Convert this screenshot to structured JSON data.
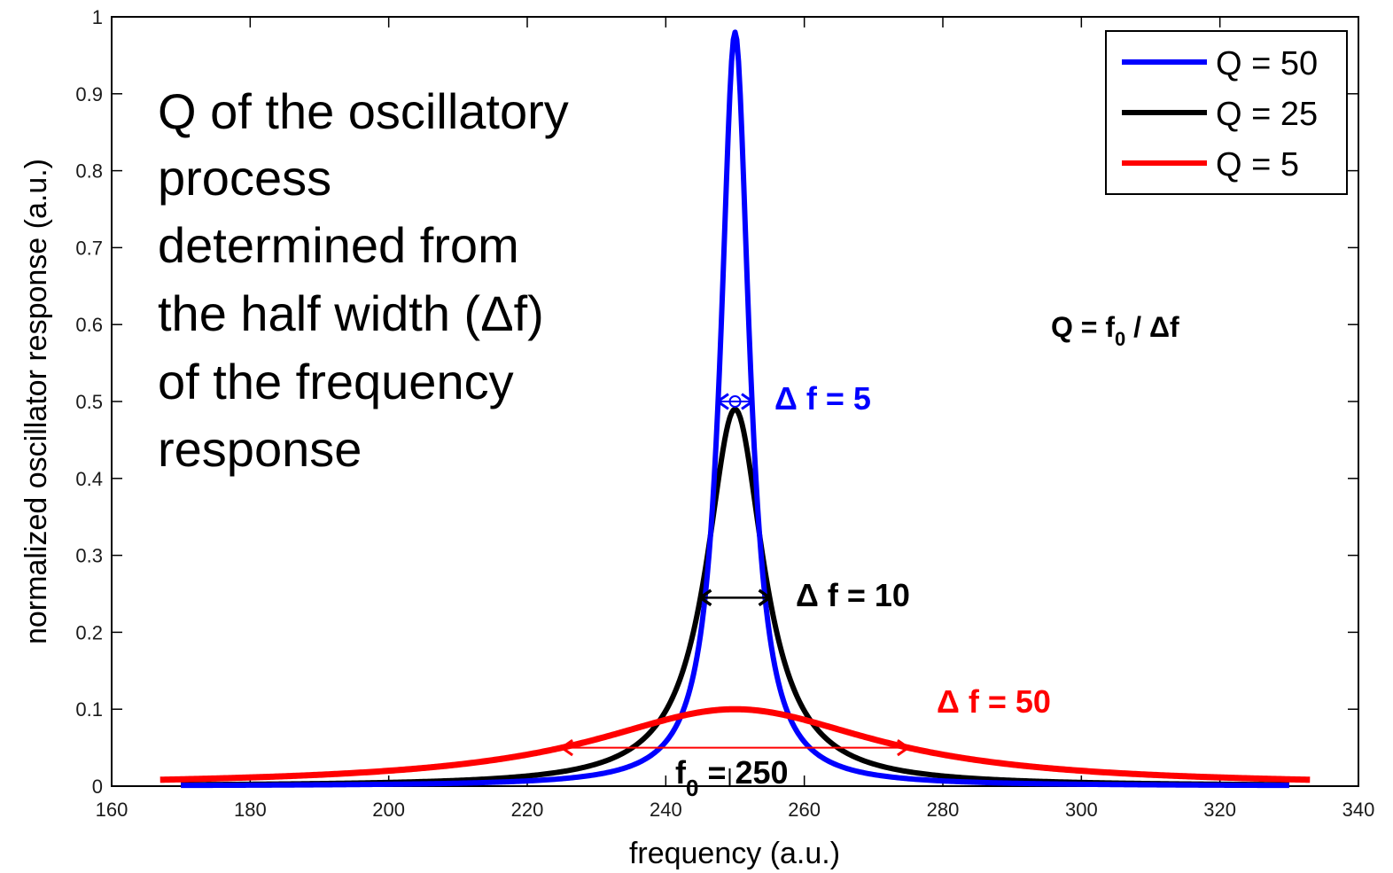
{
  "chart_data": {
    "type": "line",
    "xlabel": "frequency (a.u.)",
    "ylabel": "normalized oscillator response (a.u.)",
    "xlim": [
      160,
      340
    ],
    "ylim": [
      0,
      1
    ],
    "xticks": [
      160,
      180,
      200,
      220,
      240,
      260,
      280,
      300,
      320,
      340
    ],
    "yticks": [
      0,
      0.1,
      0.2,
      0.3,
      0.4,
      0.5,
      0.6,
      0.7,
      0.8,
      0.9,
      1
    ],
    "ytick_labels": [
      "0",
      "0.1",
      "0.2",
      "0.3",
      "0.4",
      "0.5",
      "0.6",
      "0.7",
      "0.8",
      "0.9",
      "1"
    ],
    "grid": false,
    "legend_position": "top-right",
    "series": [
      {
        "name": "Q = 50",
        "color": "#0000ff",
        "q": 50,
        "f0": 250,
        "peak": 0.98,
        "x_range": [
          170,
          330
        ]
      },
      {
        "name": "Q = 25",
        "color": "#000000",
        "q": 25,
        "f0": 250,
        "peak": 0.49,
        "x_range": [
          170,
          330
        ]
      },
      {
        "name": "Q = 5",
        "color": "#ff0000",
        "q": 5,
        "f0": 250,
        "peak": 0.1,
        "x_range": [
          167,
          333
        ]
      }
    ],
    "annotations": {
      "df_blue": {
        "text": "Δ f = 5",
        "color": "#0000ff",
        "y": 0.5,
        "x_from": 247.5,
        "x_to": 252.5
      },
      "df_black": {
        "text": "Δ f = 10",
        "color": "#000000",
        "y": 0.245,
        "x_from": 245,
        "x_to": 255
      },
      "df_red": {
        "text": "Δ f = 50",
        "color": "#ff0000",
        "y": 0.05,
        "x_from": 225,
        "x_to": 275
      },
      "f0_main": "f",
      "f0_sub": "0",
      "f0_rest": " = 250",
      "formula_main": "Q = f",
      "formula_sub": "0",
      "formula_rest": " / Δf"
    },
    "description_lines": [
      "Q of the oscillatory",
      "process",
      "determined from",
      "the half width (Δf)",
      "of the frequency",
      "response"
    ]
  }
}
